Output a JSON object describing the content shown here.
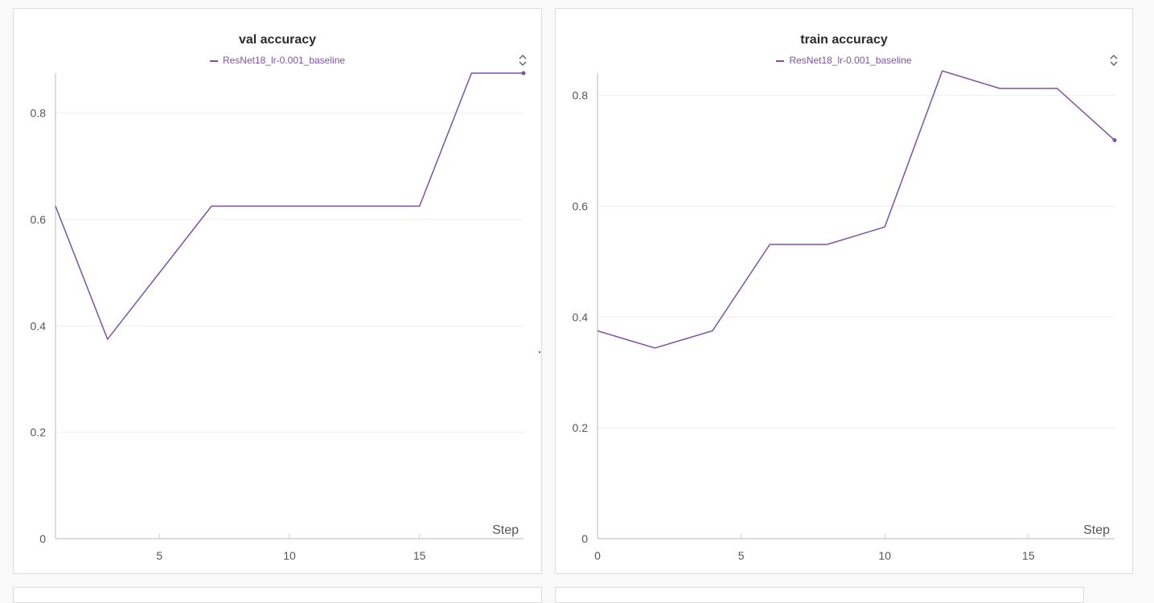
{
  "colors": {
    "series": "#7b52a6",
    "axis": "#d0d0d0",
    "grid": "#eeeeee",
    "text": "#555555",
    "marker": "#cc0033"
  },
  "icons": {
    "sort": "sort-icon"
  },
  "chart_data": [
    {
      "type": "line",
      "title": "val accuracy",
      "xlabel": "Step",
      "ylabel": "",
      "xlim": [
        1,
        19
      ],
      "ylim": [
        0,
        0.875
      ],
      "xticks": [
        5,
        10,
        15
      ],
      "yticks": [
        0,
        0.2,
        0.4,
        0.6,
        0.8
      ],
      "grid": true,
      "legend_placement": "top-center",
      "series": [
        {
          "name": "ResNet18_lr-0.001_baseline",
          "x": [
            1,
            3,
            7,
            15,
            17,
            19
          ],
          "y": [
            0.625,
            0.375,
            0.625,
            0.625,
            0.875,
            0.875
          ]
        }
      ]
    },
    {
      "type": "line",
      "title": "train accuracy",
      "xlabel": "Step",
      "ylabel": "",
      "xlim": [
        0,
        18
      ],
      "ylim": [
        0,
        0.84
      ],
      "xticks": [
        0,
        5,
        10,
        15
      ],
      "yticks": [
        0,
        0.2,
        0.4,
        0.6,
        0.8
      ],
      "grid": true,
      "legend_placement": "top-center",
      "series": [
        {
          "name": "ResNet18_lr-0.001_baseline",
          "x": [
            0,
            2,
            4,
            6,
            8,
            10,
            12,
            14,
            16,
            18
          ],
          "y": [
            0.375,
            0.344,
            0.375,
            0.531,
            0.531,
            0.5625,
            0.844,
            0.8125,
            0.8125,
            0.719
          ]
        }
      ]
    }
  ]
}
